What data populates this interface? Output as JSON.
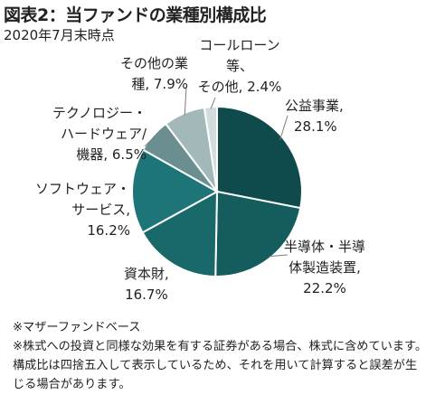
{
  "header": {
    "title": "図表2：当ファンドの業種別構成比",
    "subtitle": "2020年7月末時点"
  },
  "chart_data": {
    "type": "pie",
    "title": "図表2：当ファンドの業種別構成比",
    "subtitle": "2020年7月末時点",
    "unit": "%",
    "slices": [
      {
        "label": "公益事業",
        "value": 28.1,
        "display": "28.1%",
        "color": "#0f4a4c"
      },
      {
        "label": "半導体・半導体製造装置",
        "value": 22.2,
        "display": "22.2%",
        "color": "#155c5f"
      },
      {
        "label": "資本財",
        "value": 16.7,
        "display": "16.7%",
        "color": "#19696b"
      },
      {
        "label": "ソフトウェア・サービス",
        "value": 16.2,
        "display": "16.2%",
        "color": "#1e7578"
      },
      {
        "label": "テクノロジー・ハードウェア／機器",
        "value": 6.5,
        "display": "6.5%",
        "color": "#6b8f90"
      },
      {
        "label": "その他の業種",
        "value": 7.9,
        "display": "7.9%",
        "color": "#a2b8b9"
      },
      {
        "label": "コールローン等、その他",
        "value": 2.4,
        "display": "2.4%",
        "color": "#d2dcdc"
      }
    ],
    "legend": "none",
    "label_lines": [
      [
        "公益事業,",
        "28.1%"
      ],
      [
        "半導体・半導",
        "体製造装置,",
        "22.2%"
      ],
      [
        "資本財,",
        "16.7%"
      ],
      [
        "ソフトウェア・",
        "サービス,",
        "16.2%"
      ],
      [
        "テクノロジー・",
        "ハードウェア/",
        "機器, 6.5%"
      ],
      [
        "その他の業",
        "種, 7.9%"
      ],
      [
        "コールローン",
        "等、",
        "その他, 2.4%"
      ]
    ]
  },
  "notes": [
    "※マザーファンドベース",
    "※株式への投資と同様な効果を有する証券がある場合、株式に含めています。構成比は四捨五入して表示しているため、それを用いて計算すると誤差が生じる場合があります。"
  ]
}
